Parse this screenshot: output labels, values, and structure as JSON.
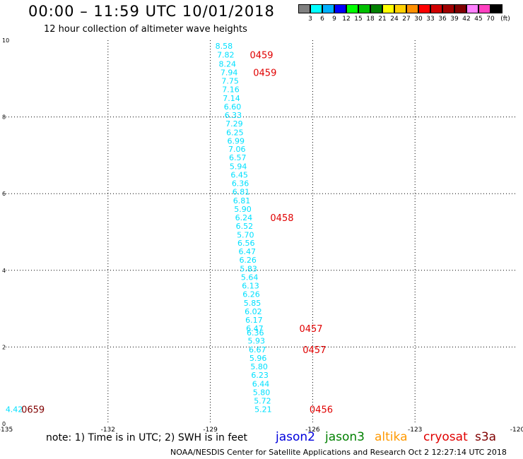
{
  "title": "00:00 – 11:59 UTC 10/01/2018",
  "subtitle": "12 hour collection of altimeter wave heights",
  "colorbar": {
    "colors": [
      "#808080",
      "#00ffff",
      "#00b0ff",
      "#0000ff",
      "#00ff00",
      "#00c000",
      "#008000",
      "#ffff00",
      "#ffd000",
      "#ff9000",
      "#ff0000",
      "#d00000",
      "#a00000",
      "#800000",
      "#ff80ff",
      "#ff40c0",
      "#000000"
    ],
    "labels": [
      "3",
      "6",
      "9",
      "12",
      "15",
      "18",
      "21",
      "24",
      "27",
      "30",
      "33",
      "36",
      "39",
      "42",
      "45",
      "70"
    ],
    "unit": "(ft)"
  },
  "note": "note: 1) Time is in UTC; 2) SWH is in feet",
  "satellites": [
    {
      "name": "jason2",
      "color": "#0000dd"
    },
    {
      "name": "jason3",
      "color": "#008000"
    },
    {
      "name": "altika",
      "color": "#ff9900"
    },
    {
      "name": "cryosat",
      "color": "#e00000"
    },
    {
      "name": "s3a",
      "color": "#800000"
    }
  ],
  "footer": "NOAA/NESDIS Center for Satellite Applications and Research    Oct  2 12:27:14 UTC 2018",
  "chart_data": {
    "type": "scatter",
    "xlim": [
      -135,
      -120
    ],
    "ylim": [
      0,
      10
    ],
    "x_ticks": [
      "-135",
      "-132",
      "-129",
      "-126",
      "-123",
      "-120"
    ],
    "y_ticks": [
      "0",
      "2",
      "4",
      "6",
      "8",
      "10"
    ],
    "grid": true,
    "series": [
      {
        "name": "cryosat",
        "color": "#00e0ff",
        "points": [
          {
            "x": -128.6,
            "y": 9.85,
            "label": "8.58"
          },
          {
            "x": -128.55,
            "y": 9.62,
            "label": "7.82"
          },
          {
            "x": -128.5,
            "y": 9.38,
            "label": "8.24"
          },
          {
            "x": -128.45,
            "y": 9.16,
            "label": "7.94"
          },
          {
            "x": -128.42,
            "y": 8.94,
            "label": "7.75"
          },
          {
            "x": -128.4,
            "y": 8.72,
            "label": "7.16"
          },
          {
            "x": -128.38,
            "y": 8.49,
            "label": "7.14"
          },
          {
            "x": -128.35,
            "y": 8.27,
            "label": "6.60"
          },
          {
            "x": -128.33,
            "y": 8.05,
            "label": "6.33"
          },
          {
            "x": -128.3,
            "y": 7.83,
            "label": "7.29"
          },
          {
            "x": -128.28,
            "y": 7.6,
            "label": "6.25"
          },
          {
            "x": -128.25,
            "y": 7.38,
            "label": "6.99"
          },
          {
            "x": -128.22,
            "y": 7.16,
            "label": "7.06"
          },
          {
            "x": -128.2,
            "y": 6.94,
            "label": "6.57"
          },
          {
            "x": -128.18,
            "y": 6.71,
            "label": "5.94"
          },
          {
            "x": -128.15,
            "y": 6.49,
            "label": "6.45"
          },
          {
            "x": -128.12,
            "y": 6.27,
            "label": "6.36"
          },
          {
            "x": -128.1,
            "y": 6.05,
            "label": "6.81"
          },
          {
            "x": -128.08,
            "y": 5.82,
            "label": "6.81"
          },
          {
            "x": -128.05,
            "y": 5.6,
            "label": "5.90"
          },
          {
            "x": -128.02,
            "y": 5.38,
            "label": "6.24"
          },
          {
            "x": -128.0,
            "y": 5.16,
            "label": "6.52"
          },
          {
            "x": -127.97,
            "y": 4.93,
            "label": "5.70"
          },
          {
            "x": -127.95,
            "y": 4.71,
            "label": "6.56"
          },
          {
            "x": -127.92,
            "y": 4.49,
            "label": "6.47"
          },
          {
            "x": -127.9,
            "y": 4.27,
            "label": "6.26"
          },
          {
            "x": -127.88,
            "y": 4.04,
            "label": "5.83"
          },
          {
            "x": -127.85,
            "y": 3.82,
            "label": "5.64"
          },
          {
            "x": -127.82,
            "y": 3.6,
            "label": "6.13"
          },
          {
            "x": -127.8,
            "y": 3.38,
            "label": "6.26"
          },
          {
            "x": -127.77,
            "y": 3.15,
            "label": "5.85"
          },
          {
            "x": -127.74,
            "y": 2.93,
            "label": "6.02"
          },
          {
            "x": -127.72,
            "y": 2.71,
            "label": "6.17"
          },
          {
            "x": -127.7,
            "y": 2.49,
            "label": "6.47"
          },
          {
            "x": -127.68,
            "y": 2.38,
            "label": "6.36"
          },
          {
            "x": -127.65,
            "y": 2.16,
            "label": "5.93"
          },
          {
            "x": -127.62,
            "y": 1.93,
            "label": "6.67"
          },
          {
            "x": -127.6,
            "y": 1.71,
            "label": "5.96"
          },
          {
            "x": -127.57,
            "y": 1.49,
            "label": "5.80"
          },
          {
            "x": -127.55,
            "y": 1.27,
            "label": "6.23"
          },
          {
            "x": -127.52,
            "y": 1.04,
            "label": "6.44"
          },
          {
            "x": -127.5,
            "y": 0.82,
            "label": "5.80"
          },
          {
            "x": -127.47,
            "y": 0.6,
            "label": "5.72"
          },
          {
            "x": -127.45,
            "y": 0.38,
            "label": "5.21"
          },
          {
            "x": -134.75,
            "y": 0.38,
            "label": "4.42"
          }
        ],
        "time_labels": [
          {
            "x": -127.5,
            "y": 9.62,
            "label": "0459"
          },
          {
            "x": -127.4,
            "y": 9.16,
            "label": "0459"
          },
          {
            "x": -126.9,
            "y": 5.38,
            "label": "0458"
          },
          {
            "x": -126.05,
            "y": 2.49,
            "label": "0457"
          },
          {
            "x": -125.95,
            "y": 1.93,
            "label": "0457"
          },
          {
            "x": -125.75,
            "y": 0.38,
            "label": "0456"
          },
          {
            "x": -134.2,
            "y": 0.38,
            "label": "0659"
          }
        ]
      }
    ]
  }
}
